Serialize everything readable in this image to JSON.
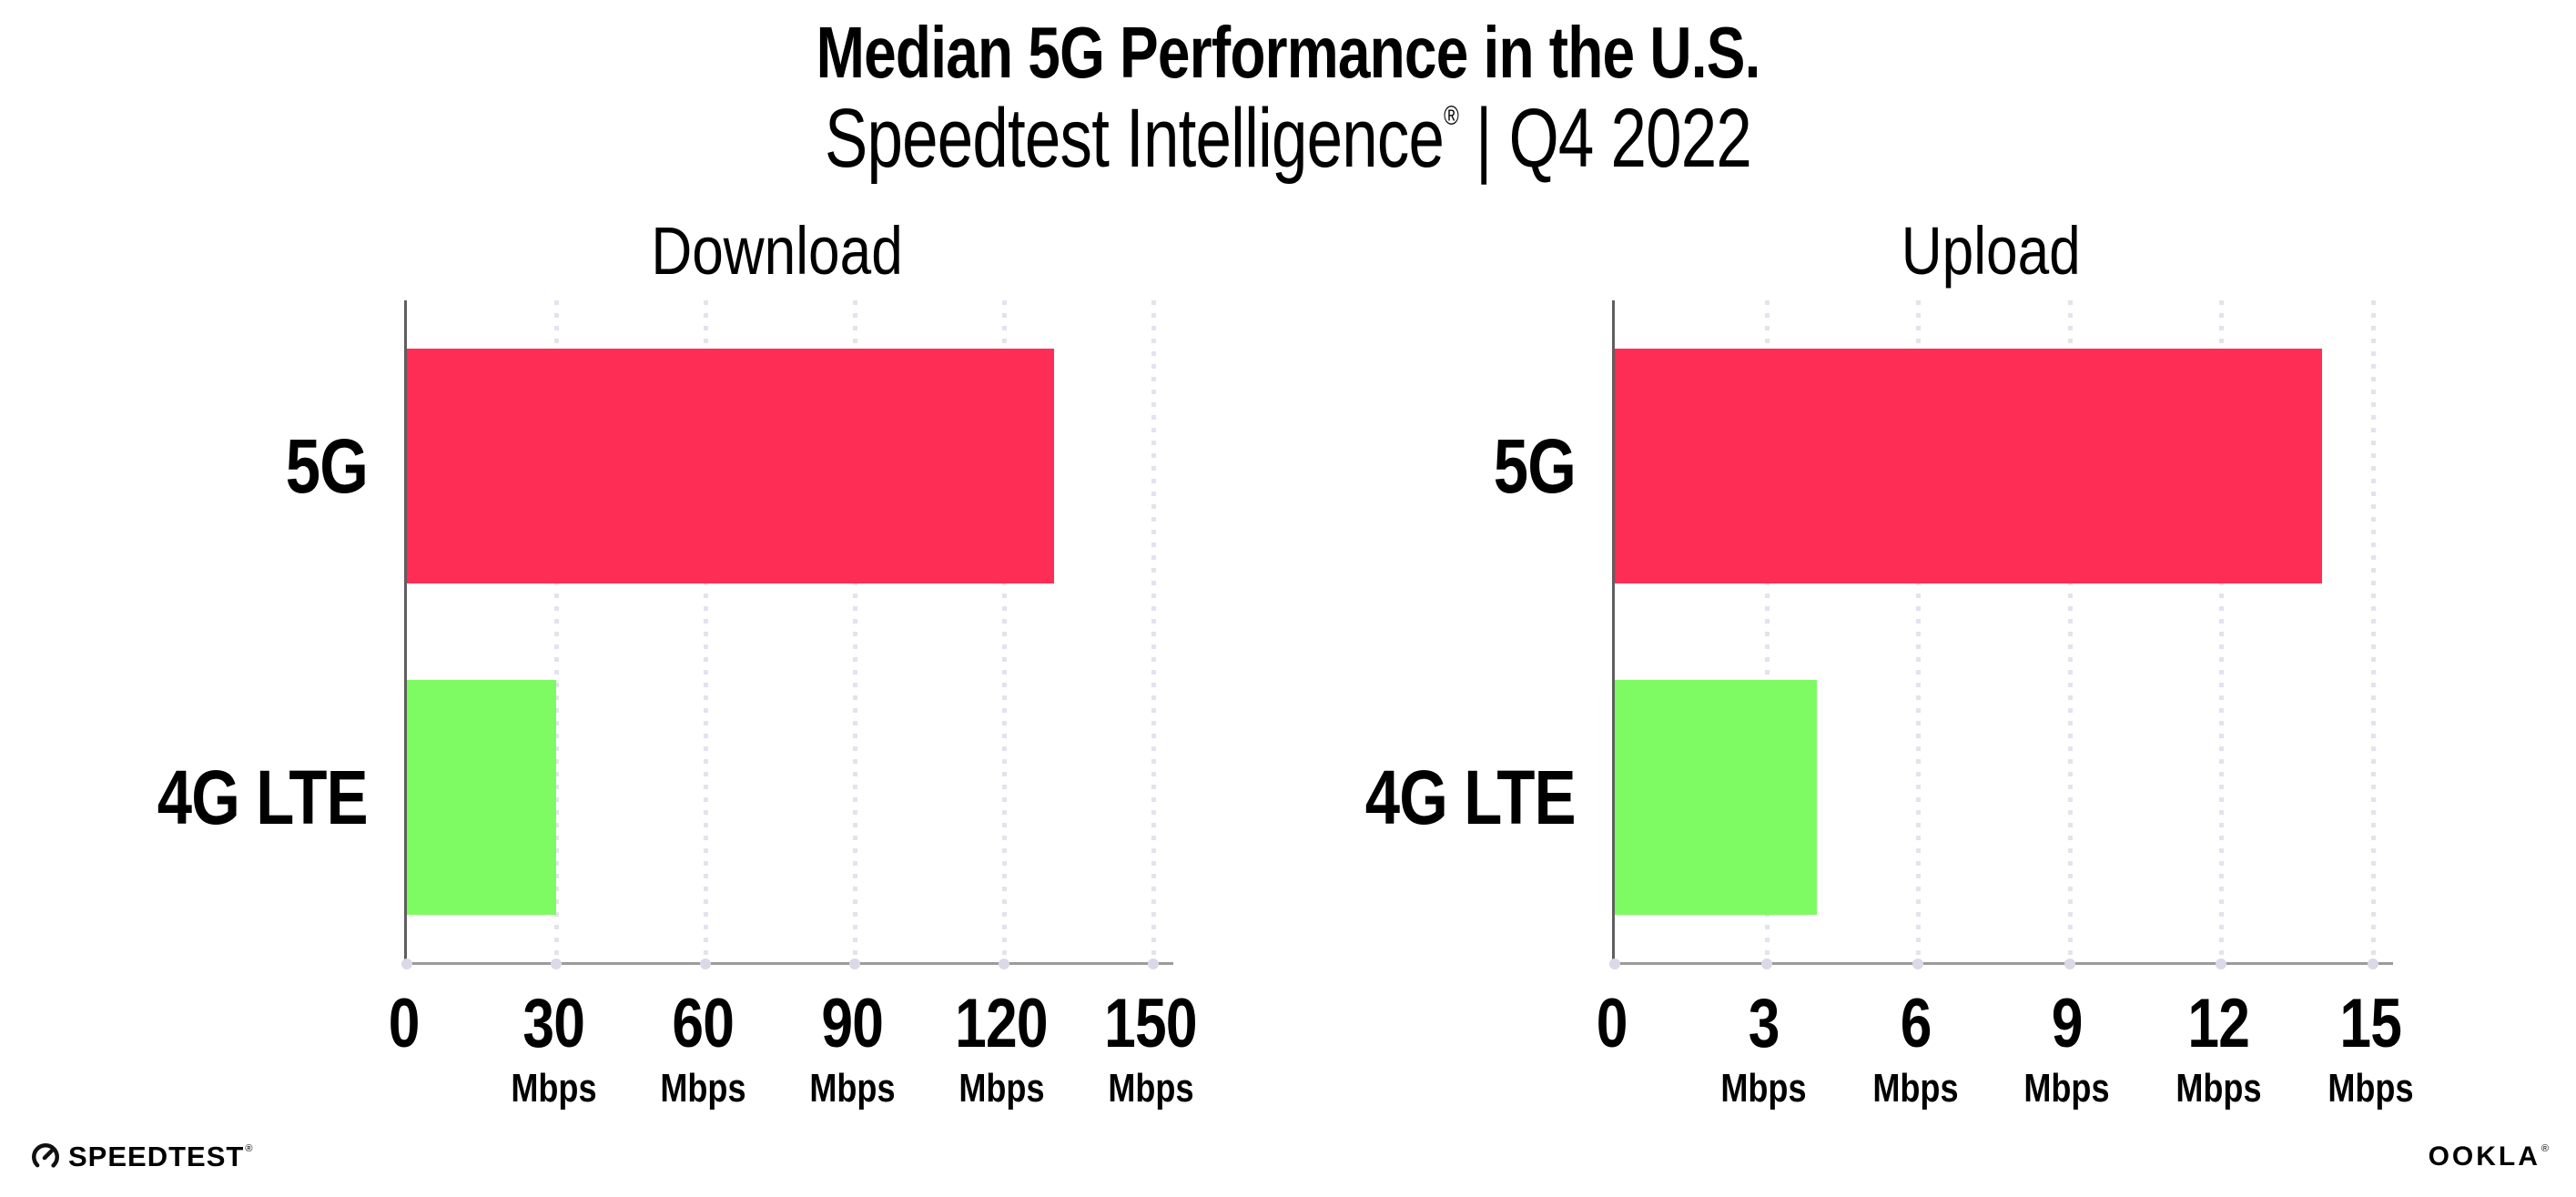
{
  "header": {
    "title": "Median 5G Performance in the U.S.",
    "subtitle": {
      "brand": "Speedtest Intelligence",
      "reg": "®",
      "rest": " | Q4 2022"
    }
  },
  "chart_data": [
    {
      "type": "bar",
      "orientation": "horizontal",
      "title": "Download",
      "categories": [
        "5G",
        "4G LTE"
      ],
      "values": [
        130,
        30
      ],
      "unit": "Mbps",
      "xlim": [
        0,
        150
      ],
      "xticks": [
        0,
        30,
        60,
        90,
        120,
        150
      ],
      "tick_unit_label": "Mbps",
      "bar_colors": [
        "#FD2D55",
        "#7EFA63"
      ],
      "grid": "dotted-vertical",
      "legend": "none"
    },
    {
      "type": "bar",
      "orientation": "horizontal",
      "title": "Upload",
      "categories": [
        "5G",
        "4G LTE"
      ],
      "values": [
        14,
        4
      ],
      "unit": "Mbps",
      "xlim": [
        0,
        15
      ],
      "xticks": [
        0,
        3,
        6,
        9,
        12,
        15
      ],
      "tick_unit_label": "Mbps",
      "bar_colors": [
        "#FD2D55",
        "#7EFA63"
      ],
      "grid": "dotted-vertical",
      "legend": "none"
    }
  ],
  "colors": {
    "bar_5g": "#FD2D55",
    "bar_4g_lte": "#7EFA63",
    "gridline_dots": "#E3E3EE",
    "axis_y": "#5F5F5F",
    "axis_baseline": "#9B9B9B",
    "text": "#000000"
  },
  "footer": {
    "speedtest_label": "SPEEDTEST",
    "speedtest_mark": "®",
    "ookla_label": "OOKLA",
    "ookla_mark": "®"
  }
}
